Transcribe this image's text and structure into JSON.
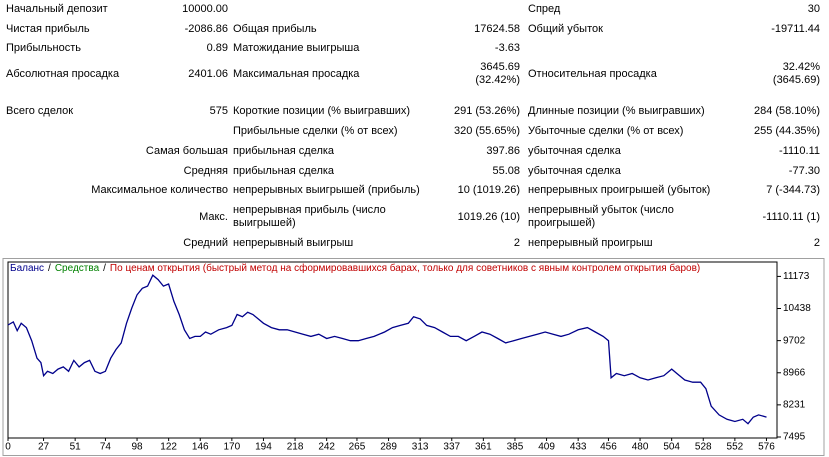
{
  "table": {
    "rows": [
      [
        "Начальный депозит",
        "10000.00",
        null,
        null,
        "Спред",
        "30"
      ],
      [
        "Чистая прибыль",
        "-2086.86",
        "Общая прибыль",
        "17624.58",
        "Общий убыток",
        "-19711.44"
      ],
      [
        "Прибыльность",
        "0.89",
        "Матожидание выигрыша",
        "-3.63",
        null,
        null
      ],
      [
        "Абсолютная просадка",
        "2401.06",
        "Максимальная просадка",
        "3645.69\n(32.42%)",
        "Относительная просадка",
        "32.42%\n(3645.69)"
      ],
      [
        "Всего сделок",
        "575",
        "Короткие позиции (% выигравших)",
        "291 (53.26%)",
        "Длинные позиции (% выигравших)",
        "284 (58.10%)"
      ],
      [
        null,
        null,
        "Прибыльные сделки (% от всех)",
        "320 (55.65%)",
        "Убыточные сделки (% от всех)",
        "255 (44.35%)"
      ],
      [
        "Самая большая",
        null,
        "прибыльная сделка",
        "397.86",
        "убыточная сделка",
        "-1110.11"
      ],
      [
        "Средняя",
        null,
        "прибыльная сделка",
        "55.08",
        "убыточная сделка",
        "-77.30"
      ],
      [
        "Максимальное количество",
        null,
        "непрерывных выигрышей (прибыль)",
        "10 (1019.26)",
        "непрерывных проигрышей (убыток)",
        "7 (-344.73)"
      ],
      [
        "Макс.",
        null,
        "непрерывная прибыль (число\nвыигрышей)",
        "1019.26 (10)",
        "непрерывный убыток (число\nпроигрышей)",
        "-1110.11 (1)"
      ],
      [
        "Средний",
        null,
        "непрерывный выигрыш",
        "2",
        "непрерывный проигрыш",
        "2"
      ]
    ]
  },
  "chart_data": {
    "type": "line",
    "legend_separator": "/",
    "legend_extra": [
      {
        "text": "Средства",
        "color": "#008000"
      },
      {
        "text": "По ценам открытия (быстрый метод на сформировавшихся барах, только для советников с явным контролем открытия баров)",
        "color": "#c00000"
      }
    ],
    "x": [
      0,
      4,
      7,
      10,
      14,
      18,
      22,
      25,
      27,
      30,
      34,
      38,
      42,
      46,
      50,
      54,
      58,
      62,
      66,
      70,
      74,
      78,
      82,
      86,
      90,
      94,
      98,
      102,
      106,
      110,
      114,
      118,
      122,
      126,
      130,
      134,
      138,
      142,
      146,
      150,
      154,
      160,
      166,
      170,
      174,
      178,
      182,
      186,
      190,
      194,
      200,
      206,
      212,
      218,
      224,
      230,
      236,
      242,
      248,
      254,
      260,
      266,
      272,
      278,
      286,
      292,
      298,
      304,
      308,
      313,
      318,
      324,
      330,
      336,
      342,
      348,
      354,
      360,
      366,
      372,
      378,
      384,
      390,
      396,
      402,
      408,
      414,
      420,
      426,
      433,
      440,
      446,
      452,
      456,
      458,
      462,
      468,
      474,
      480,
      486,
      492,
      498,
      504,
      508,
      514,
      520,
      526,
      530,
      534,
      540,
      546,
      552,
      558,
      562,
      566,
      570,
      576
    ],
    "series": [
      {
        "name": "Баланс",
        "color": "#00008b",
        "values": [
          10060,
          10130,
          9930,
          10100,
          10000,
          9700,
          9300,
          9200,
          8900,
          9000,
          8950,
          9050,
          9100,
          9000,
          9250,
          9100,
          9200,
          9250,
          9000,
          8950,
          9000,
          9300,
          9500,
          9650,
          10100,
          10450,
          10750,
          10900,
          10950,
          11200,
          11100,
          10950,
          11000,
          10600,
          10300,
          9950,
          9750,
          9800,
          9800,
          9900,
          9850,
          9950,
          10000,
          10050,
          10300,
          10250,
          10350,
          10300,
          10200,
          10100,
          10000,
          9950,
          9950,
          9900,
          9850,
          9800,
          9850,
          9750,
          9800,
          9750,
          9700,
          9700,
          9750,
          9800,
          9900,
          10000,
          10050,
          10100,
          10250,
          10200,
          10050,
          10000,
          9900,
          9800,
          9800,
          9700,
          9800,
          9900,
          9850,
          9750,
          9650,
          9700,
          9750,
          9800,
          9850,
          9900,
          9850,
          9800,
          9850,
          9950,
          10000,
          9900,
          9800,
          9700,
          8850,
          8950,
          8900,
          8950,
          8850,
          8800,
          8850,
          8900,
          9050,
          8950,
          8800,
          8750,
          8750,
          8600,
          8200,
          8000,
          7900,
          7850,
          7900,
          7800,
          7950,
          8000,
          7950
        ]
      }
    ],
    "xlim": [
      0,
      584
    ],
    "ylim": [
      7472,
      11503
    ],
    "xticks": [
      0,
      27,
      51,
      74,
      98,
      122,
      146,
      170,
      194,
      218,
      242,
      265,
      289,
      313,
      337,
      361,
      385,
      409,
      433,
      456,
      480,
      504,
      528,
      552,
      576
    ],
    "yticks": [
      7495,
      8231,
      8966,
      9702,
      10438,
      11173
    ]
  }
}
